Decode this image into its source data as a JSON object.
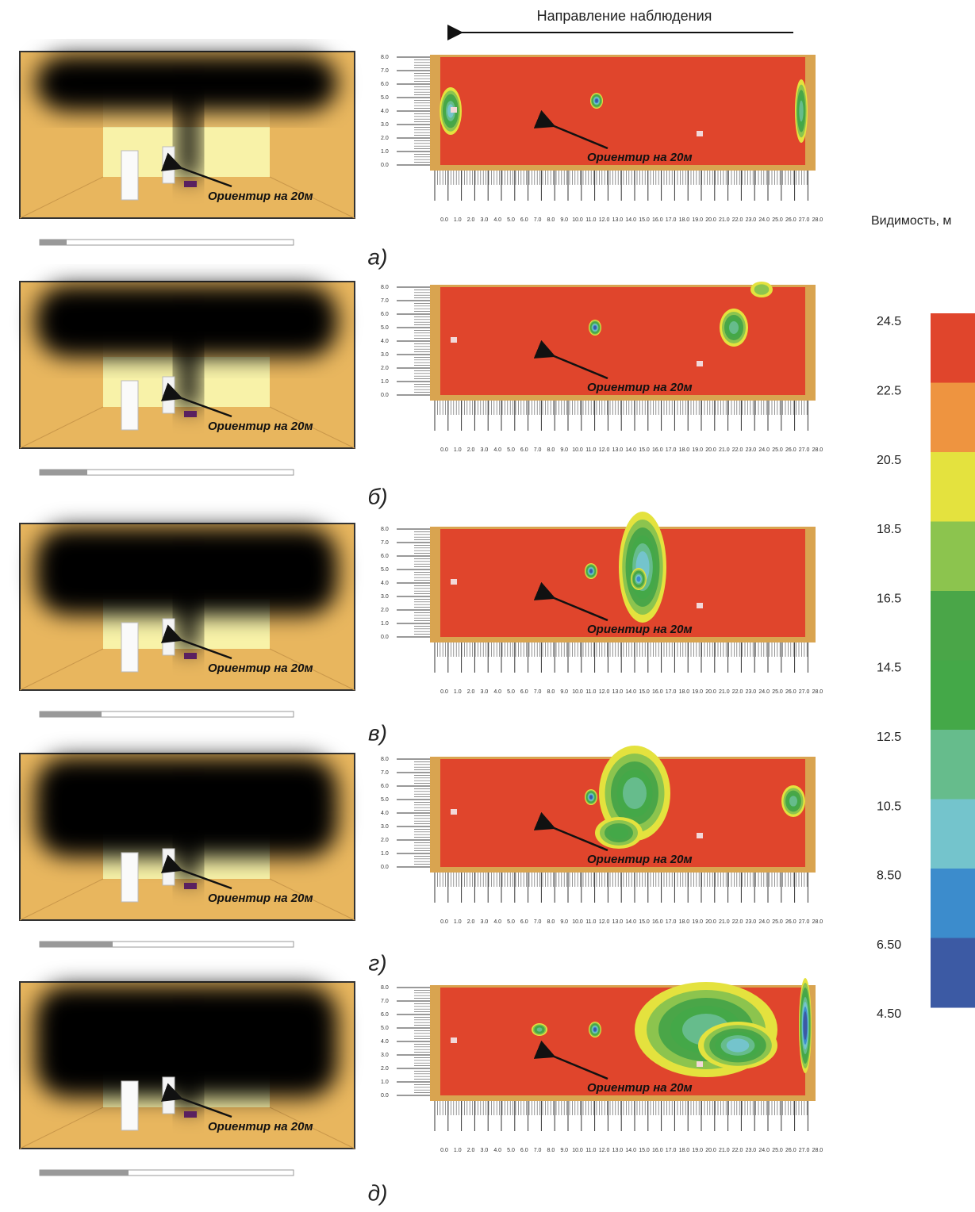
{
  "header": {
    "title": "Направление наблюдения"
  },
  "axes": {
    "y_ticks": [
      "0.0",
      "1.0",
      "2.0",
      "3.0",
      "4.0",
      "5.0",
      "6.0",
      "7.0",
      "8.0"
    ],
    "x_ticks": [
      "0.0",
      "1.0",
      "2.0",
      "3.0",
      "4.0",
      "5.0",
      "6.0",
      "7.0",
      "8.0",
      "9.0",
      "10.0",
      "11.0",
      "12.0",
      "13.0",
      "14.0",
      "15.0",
      "16.0",
      "17.0",
      "18.0",
      "19.0",
      "20.0",
      "21.0",
      "22.0",
      "23.0",
      "24.0",
      "25.0",
      "26.0",
      "27.0",
      "28.0"
    ]
  },
  "panels": [
    {
      "label": "а)",
      "annotation_left": "Ориентир на 20м",
      "annotation_right": "Ориентир на 20м"
    },
    {
      "label": "б)",
      "annotation_left": "Ориентир на 20м",
      "annotation_right": "Ориентир на 20м"
    },
    {
      "label": "в)",
      "annotation_left": "Ориентир на 20м",
      "annotation_right": "Ориентир на 20м"
    },
    {
      "label": "г)",
      "annotation_left": "Ориентир на 20м",
      "annotation_right": "Ориентир на 20м"
    },
    {
      "label": "д)",
      "annotation_left": "Ориентир на 20м",
      "annotation_right": "Ориентир на 20м"
    }
  ],
  "legend": {
    "title": "Видимость, м",
    "ticks": [
      "24.5",
      "22.5",
      "20.5",
      "18.5",
      "16.5",
      "14.5",
      "12.5",
      "10.5",
      "8.50",
      "6.50",
      "4.50"
    ],
    "colors": [
      "#e0452c",
      "#ee9440",
      "#e4e23e",
      "#8cc44e",
      "#4aa648",
      "#44a848",
      "#66bc8c",
      "#74c4cc",
      "#3c8ccc",
      "#3c5aa4"
    ]
  }
}
